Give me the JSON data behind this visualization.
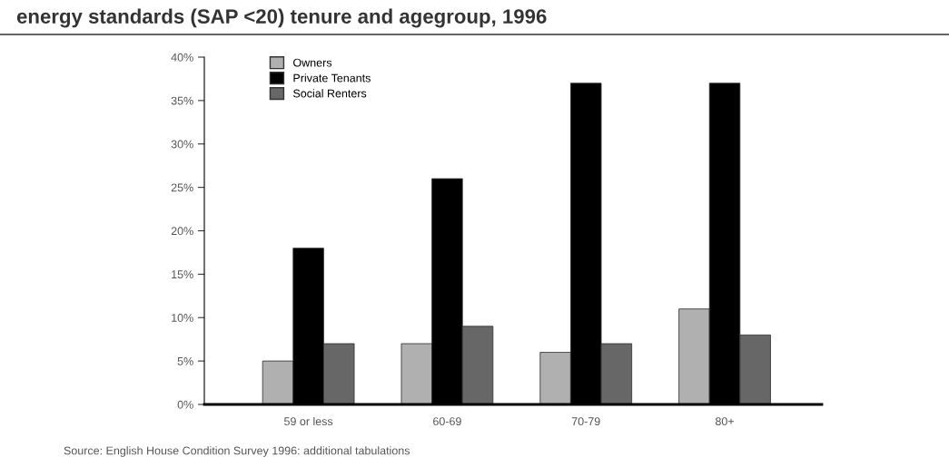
{
  "chart_data": {
    "type": "bar",
    "title": "energy standards (SAP <20) tenure and agegroup, 1996",
    "categories": [
      "59 or less",
      "60-69",
      "70-79",
      "80+"
    ],
    "series": [
      {
        "name": "Owners",
        "color": "#b0b0b0",
        "values": [
          5,
          7,
          6,
          11
        ]
      },
      {
        "name": "Private Tenants",
        "color": "#000000",
        "values": [
          18,
          26,
          37,
          37
        ]
      },
      {
        "name": "Social Renters",
        "color": "#676767",
        "values": [
          7,
          9,
          7,
          8
        ]
      }
    ],
    "ylim": [
      0,
      40
    ],
    "yticks": [
      {
        "value": 0,
        "label": "0%"
      },
      {
        "value": 5,
        "label": "5%"
      },
      {
        "value": 10,
        "label": "10%"
      },
      {
        "value": 15,
        "label": "15%"
      },
      {
        "value": 20,
        "label": "20%"
      },
      {
        "value": 25,
        "label": "25%"
      },
      {
        "value": 30,
        "label": "30%"
      },
      {
        "value": 35,
        "label": "35%"
      },
      {
        "value": 40,
        "label": "40%"
      }
    ],
    "grid": false,
    "legend": "top left",
    "annotations": [
      "Source: English House Condition Survey 1996: additional tabulations"
    ]
  }
}
